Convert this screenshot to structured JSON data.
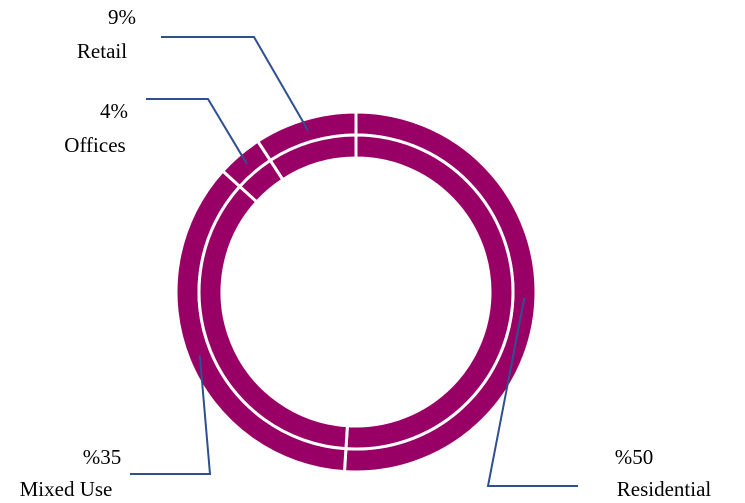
{
  "chart_data": {
    "type": "pie",
    "variant": "donut",
    "title": "",
    "slices": [
      {
        "category": "Residential",
        "value": 50,
        "value_label": "%50"
      },
      {
        "category": "Mixed Use",
        "value": 35,
        "value_label": "%35"
      },
      {
        "category": "Offices",
        "value": 4,
        "value_label": "4%"
      },
      {
        "category": "Retail",
        "value": 9,
        "value_label": "9%"
      }
    ],
    "start_angle_deg": 0,
    "direction": "clockwise",
    "legend": "none",
    "colors": {
      "slice_fill": "#990066",
      "slice_separator": "#ffffff",
      "leader_line": "#2f4f8f",
      "label_text": "#000000"
    }
  }
}
